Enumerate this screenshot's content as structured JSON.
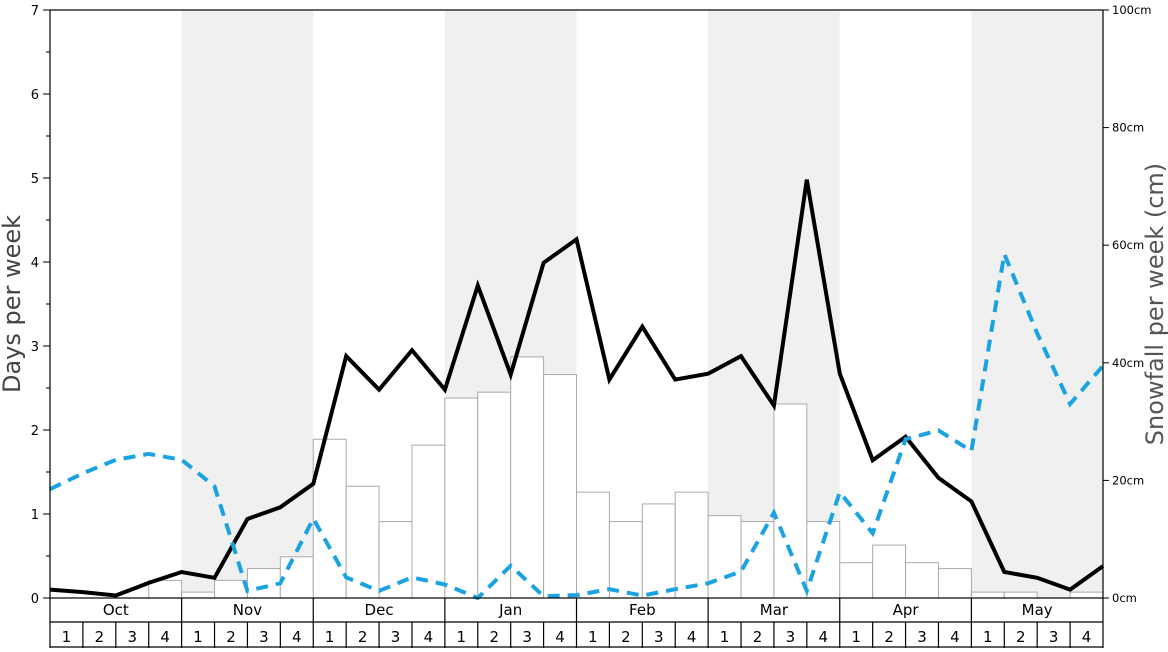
{
  "chart_data": {
    "type": "bar",
    "left_axis_label": "Days per week",
    "right_axis_label": "Snowfall per week (cm)",
    "left_ylim": [
      0,
      7
    ],
    "right_ylim": [
      0,
      100
    ],
    "left_ticks": [
      "0",
      "1",
      "2",
      "3",
      "4",
      "5",
      "6",
      "7"
    ],
    "right_ticks": [
      "0cm",
      "20cm",
      "40cm",
      "60cm",
      "80cm",
      "100cm"
    ],
    "months": [
      "Oct",
      "Nov",
      "Dec",
      "Jan",
      "Feb",
      "Mar",
      "Apr",
      "May"
    ],
    "weeks": [
      "1",
      "2",
      "3",
      "4"
    ],
    "grid": false,
    "band_color": "#f0f0f0",
    "series": [
      {
        "kind": "bar",
        "axis": "right",
        "color": "#ffffff",
        "edge_color": "#aaaaaa",
        "values": [
          0,
          0,
          0,
          3,
          1,
          3,
          5,
          7,
          27,
          19,
          13,
          26,
          34,
          35,
          41,
          38,
          18,
          13,
          16,
          18,
          14,
          13,
          33,
          13,
          6,
          9,
          6,
          5,
          1,
          1,
          0,
          1
        ]
      },
      {
        "kind": "line",
        "axis": "left",
        "color": "#000000",
        "style": "solid",
        "values": [
          0.1,
          0.07,
          0.03,
          0.18,
          0.31,
          0.24,
          0.94,
          1.08,
          1.36,
          2.88,
          2.48,
          2.95,
          2.48,
          3.72,
          2.66,
          3.99,
          4.27,
          2.6,
          3.23,
          2.6,
          2.67,
          2.88,
          2.29,
          4.98,
          2.67,
          1.64,
          1.92,
          1.43,
          1.15,
          0.31,
          0.24,
          0.1,
          0.38
        ]
      },
      {
        "kind": "line",
        "axis": "right",
        "color": "#1aa3e0",
        "style": "dashed",
        "values": [
          18.5,
          21.2,
          23.5,
          24.5,
          23.5,
          19,
          1.2,
          2.5,
          13.5,
          3.5,
          1.2,
          3.5,
          2.3,
          0,
          5.5,
          0.3,
          0.5,
          1.5,
          0.4,
          1.5,
          2.5,
          4.5,
          14.5,
          1.2,
          18,
          11,
          27,
          28.5,
          25,
          58.5,
          45,
          33,
          39.5
        ]
      }
    ]
  }
}
